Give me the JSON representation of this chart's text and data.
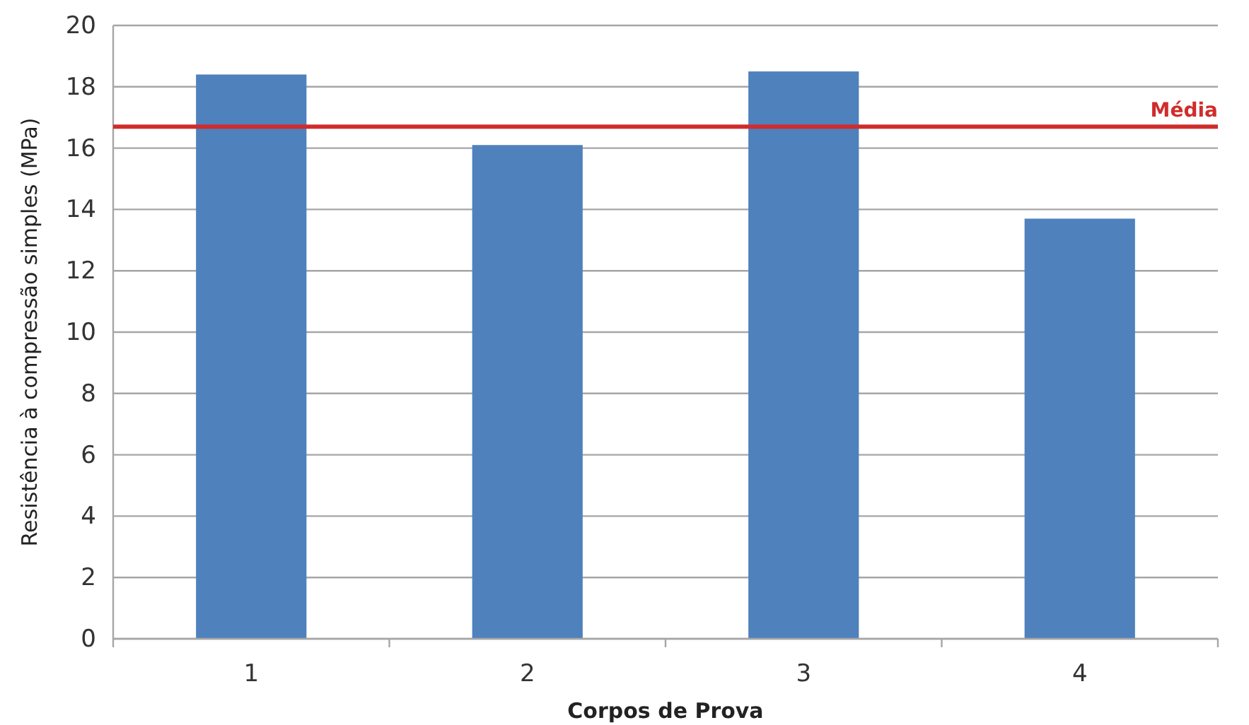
{
  "chart_data": {
    "type": "bar",
    "xlabel": "Corpos de Prova",
    "ylabel": "Resistência à compressão simples (MPa)",
    "categories": [
      "1",
      "2",
      "3",
      "4"
    ],
    "values": [
      18.4,
      16.1,
      18.5,
      13.7
    ],
    "color": "#4f81bd",
    "ylim": [
      0,
      20
    ],
    "yticks": [
      0,
      2,
      4,
      6,
      8,
      10,
      12,
      14,
      16,
      18,
      20
    ],
    "grid": "y",
    "ref_lines": [
      {
        "axis": "y",
        "value": 16.7,
        "label": "Média",
        "color": "#d02c2c"
      }
    ]
  }
}
